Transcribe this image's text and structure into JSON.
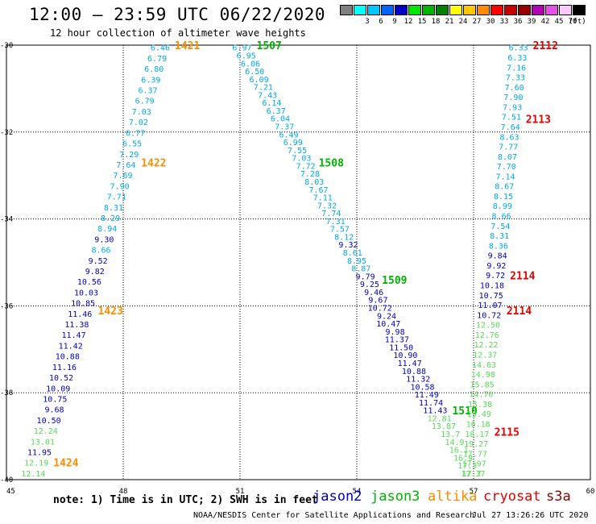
{
  "header": {
    "title": "12:00 – 23:59 UTC 06/22/2020",
    "subtitle": "12 hour collection of altimeter wave heights"
  },
  "legend": {
    "unit": "(ft)",
    "items": [
      {
        "label": "",
        "color": "#808080"
      },
      {
        "label": "3",
        "color": "#00ffff"
      },
      {
        "label": "6",
        "color": "#00c8ff"
      },
      {
        "label": "9",
        "color": "#0064ff"
      },
      {
        "label": "12",
        "color": "#0000c8"
      },
      {
        "label": "15",
        "color": "#00e600"
      },
      {
        "label": "18",
        "color": "#00b400"
      },
      {
        "label": "21",
        "color": "#008200"
      },
      {
        "label": "24",
        "color": "#ffff00"
      },
      {
        "label": "27",
        "color": "#ffc800"
      },
      {
        "label": "30",
        "color": "#ff8c00"
      },
      {
        "label": "33",
        "color": "#ff0000"
      },
      {
        "label": "36",
        "color": "#c80000"
      },
      {
        "label": "39",
        "color": "#960000"
      },
      {
        "label": "42",
        "color": "#b400b4"
      },
      {
        "label": "45",
        "color": "#e650e6"
      },
      {
        "label": "70",
        "color": "#ffc8ff"
      },
      {
        "label": "",
        "color": "#000000"
      }
    ]
  },
  "map": {
    "lon_range": [
      45,
      60
    ],
    "lat_range": [
      -40,
      -30
    ],
    "lon_ticks": [
      "45",
      "48",
      "51",
      "54",
      "57",
      "60"
    ],
    "lat_ticks": [
      "-30",
      "-32",
      "-34",
      "-36",
      "-38",
      "-40"
    ],
    "grid": "dotted"
  },
  "satellite_colors": {
    "jason2": "#0000c8",
    "jason3": "#00b400",
    "altika": "#ff8c00",
    "cryosat": "#e60000",
    "s3a": "#8c0000",
    "j3_light": "#55dd55",
    "low": "#00aaee"
  },
  "tracks": [
    {
      "name": "track-1421-1424",
      "lon_start": 49.2,
      "lon_end": 46.0,
      "labels": [
        {
          "text": "1421",
          "lat": -30.0,
          "sat": "altika"
        },
        {
          "text": "1422",
          "lat": -32.7,
          "sat": "altika"
        },
        {
          "text": "1423",
          "lat": -36.1,
          "sat": "altika"
        },
        {
          "text": "1424",
          "lat": -39.6,
          "sat": "altika"
        }
      ],
      "values": [
        "6.46",
        "6.79",
        "6.80",
        "6.39",
        "6.37",
        "6.79",
        "7.03",
        "7.02",
        "6.77",
        "6.55",
        "7.29",
        "7.64",
        "7.69",
        "7.90",
        "7.71",
        "8.31",
        "8.29",
        "8.94",
        "9.30",
        "8.66",
        "9.52",
        "9.82",
        "10.56",
        "10.03",
        "10.85",
        "11.46",
        "11.38",
        "11.47",
        "11.42",
        "10.88",
        "11.16",
        "10.52",
        "10.09",
        "10.75",
        "9.68",
        "10.50",
        "12.24",
        "13.01",
        "11.95",
        "12.19",
        "12.14"
      ]
    },
    {
      "name": "track-1507-1510",
      "lon_start": 51.3,
      "lon_end": 57.2,
      "labels": [
        {
          "text": "1507",
          "lat": -30.0,
          "sat": "jason3"
        },
        {
          "text": "1508",
          "lat": -32.7,
          "sat": "jason3"
        },
        {
          "text": "1509",
          "lat": -35.4,
          "sat": "jason3"
        },
        {
          "text": "1510",
          "lat": -38.4,
          "sat": "jason3"
        }
      ],
      "values": [
        "6.97",
        "6.95",
        "6.06",
        "6.50",
        "6.09",
        "7.21",
        "7.43",
        "6.14",
        "6.37",
        "6.04",
        "7.37",
        "6.49",
        "6.99",
        "7.55",
        "7.03",
        "7.72",
        "7.28",
        "8.03",
        "7.67",
        "7.11",
        "7.32",
        "7.74",
        "7.31",
        "7.57",
        "8.12",
        "9.32",
        "8.61",
        "8.95",
        "8.87",
        "9.79",
        "9.25",
        "9.46",
        "9.67",
        "10.72",
        "9.24",
        "10.47",
        "9.98",
        "11.37",
        "11.50",
        "10.90",
        "11.47",
        "10.88",
        "11.32",
        "10.58",
        "11.49",
        "11.74",
        "11.43",
        "12.81",
        "13.87",
        "13.7",
        "14.9",
        "16.1",
        "16.9",
        "17.3",
        "17.7"
      ]
    },
    {
      "name": "track-2112-2115",
      "lon_start": 58.4,
      "lon_end": 57.3,
      "labels": [
        {
          "text": "2112",
          "lat": -30.0,
          "sat": "cryosat"
        },
        {
          "text": "2113",
          "lat": -31.7,
          "sat": "cryosat"
        },
        {
          "text": "2114",
          "lat": -35.3,
          "sat": "cryosat"
        },
        {
          "text": "2114",
          "lat": -36.1,
          "sat": "cryosat"
        },
        {
          "text": "2115",
          "lat": -38.9,
          "sat": "cryosat"
        }
      ],
      "values": [
        "6.33",
        "6.33",
        "7.16",
        "7.33",
        "7.60",
        "7.90",
        "7.93",
        "7.51",
        "7.64",
        "8.63",
        "7.77",
        "8.07",
        "7.70",
        "7.14",
        "8.67",
        "8.15",
        "8.99",
        "8.66",
        "7.54",
        "8.31",
        "8.36",
        "9.84",
        "9.92",
        "9.72",
        "10.18",
        "10.75",
        "11.07",
        "10.72",
        "12.50",
        "12.76",
        "12.22",
        "12.37",
        "14.63",
        "14.98",
        "15.85",
        "14.70",
        "15.38",
        "15.49",
        "16.18",
        "18.17",
        "19.27",
        "17.77",
        "17.97",
        "17.37"
      ]
    }
  ],
  "footer": {
    "note": "note: 1) Time is in UTC; 2) SWH is in feet",
    "satellites": [
      {
        "name": "jason2",
        "key": "jason2"
      },
      {
        "name": "jason3",
        "key": "jason3"
      },
      {
        "name": "altika",
        "key": "altika"
      },
      {
        "name": "cryosat",
        "key": "cryosat"
      },
      {
        "name": "s3a",
        "key": "s3a"
      }
    ],
    "credit": "NOAA/NESDIS Center for Satellite Applications and Research",
    "timestamp": "Jul 27 13:26:26 UTC 2020"
  }
}
